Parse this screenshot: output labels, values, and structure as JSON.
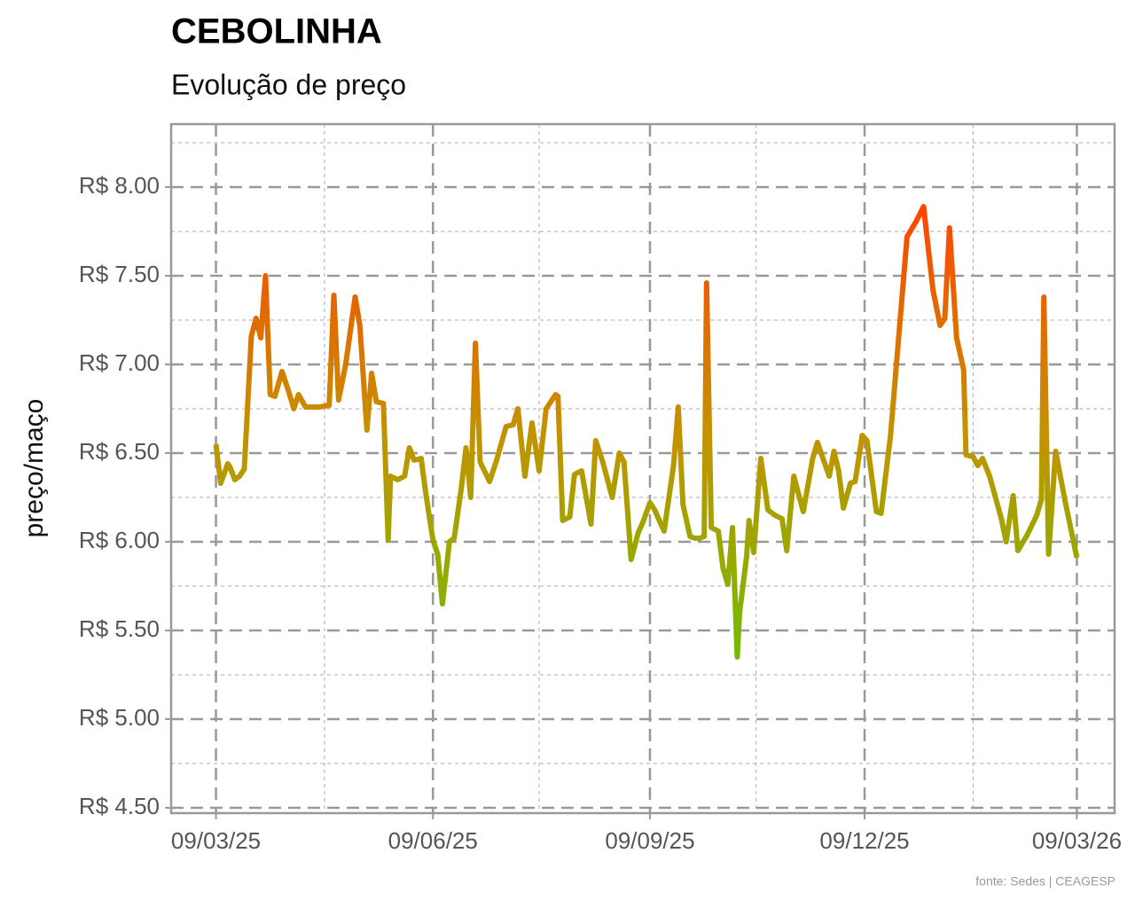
{
  "chart_data": {
    "type": "line",
    "title": "CEBOLINHA",
    "subtitle": "Evolução de preço",
    "y_label": "preço/maço",
    "source": "fonte: Sedes | CEAGESP",
    "gradient_colors": [
      "#ff4400",
      "#c49200",
      "#74bb00"
    ],
    "grid": true,
    "xlim": [
      "2025-02-18",
      "2026-03-25"
    ],
    "xticks": [
      {
        "value": "2025-03-09",
        "label": "09/03/25"
      },
      {
        "value": "2025-06-09",
        "label": "09/06/25"
      },
      {
        "value": "2025-09-09",
        "label": "09/09/25"
      },
      {
        "value": "2025-12-09",
        "label": "09/12/25"
      },
      {
        "value": "2026-03-09",
        "label": "09/03/26"
      }
    ],
    "xminor": [
      "2025-04-24",
      "2025-07-24",
      "2025-10-24",
      "2026-01-24"
    ],
    "ylim": [
      4.47,
      8.355
    ],
    "yticks": [
      {
        "value": 4.5,
        "label": "R$ 4.50"
      },
      {
        "value": 5,
        "label": "R$ 5.00"
      },
      {
        "value": 5.5,
        "label": "R$ 5.50"
      },
      {
        "value": 6,
        "label": "R$ 6.00"
      },
      {
        "value": 6.5,
        "label": "R$ 6.50"
      },
      {
        "value": 7,
        "label": "R$ 7.00"
      },
      {
        "value": 7.5,
        "label": "R$ 7.50"
      },
      {
        "value": 8,
        "label": "R$ 8.00"
      }
    ],
    "yminor": [
      4.75,
      5.25,
      5.75,
      6.25,
      6.75,
      7.25,
      7.75,
      8.25
    ],
    "x": [
      "2025-03-09",
      "2025-03-11",
      "2025-03-14",
      "2025-03-15",
      "2025-03-17",
      "2025-03-19",
      "2025-03-21",
      "2025-03-24",
      "2025-03-26",
      "2025-03-28",
      "2025-03-30",
      "2025-04-01",
      "2025-04-03",
      "2025-04-06",
      "2025-04-09",
      "2025-04-11",
      "2025-04-13",
      "2025-04-16",
      "2025-04-19",
      "2025-04-22",
      "2025-04-26",
      "2025-04-28",
      "2025-04-30",
      "2025-05-03",
      "2025-05-07",
      "2025-05-09",
      "2025-05-12",
      "2025-05-14",
      "2025-05-16",
      "2025-05-19",
      "2025-05-21",
      "2025-05-22",
      "2025-05-25",
      "2025-05-28",
      "2025-05-30",
      "2025-06-01",
      "2025-06-04",
      "2025-06-06",
      "2025-06-09",
      "2025-06-11",
      "2025-06-13",
      "2025-06-16",
      "2025-06-18",
      "2025-06-21",
      "2025-06-23",
      "2025-06-25",
      "2025-06-27",
      "2025-06-29",
      "2025-07-03",
      "2025-07-06",
      "2025-07-10",
      "2025-07-13",
      "2025-07-15",
      "2025-07-18",
      "2025-07-21",
      "2025-07-24",
      "2025-07-27",
      "2025-07-31",
      "2025-08-01",
      "2025-08-03",
      "2025-08-06",
      "2025-08-08",
      "2025-08-11",
      "2025-08-15",
      "2025-08-17",
      "2025-08-20",
      "2025-08-24",
      "2025-08-27",
      "2025-08-29",
      "2025-09-01",
      "2025-09-04",
      "2025-09-06",
      "2025-09-09",
      "2025-09-11",
      "2025-09-15",
      "2025-09-19",
      "2025-09-21",
      "2025-09-23",
      "2025-09-26",
      "2025-09-28",
      "2025-09-30",
      "2025-10-02",
      "2025-10-03",
      "2025-10-05",
      "2025-10-08",
      "2025-10-10",
      "2025-10-12",
      "2025-10-14",
      "2025-10-16",
      "2025-10-17",
      "2025-10-20",
      "2025-10-21",
      "2025-10-23",
      "2025-10-26",
      "2025-10-29",
      "2025-11-01",
      "2025-11-04",
      "2025-11-06",
      "2025-11-09",
      "2025-11-13",
      "2025-11-17",
      "2025-11-19",
      "2025-11-24",
      "2025-11-26",
      "2025-11-28",
      "2025-11-30",
      "2025-12-03",
      "2025-12-05",
      "2025-12-08",
      "2025-12-10",
      "2025-12-11",
      "2025-12-14",
      "2025-12-16",
      "2025-12-18",
      "2025-12-20",
      "2025-12-27",
      "2025-12-31",
      "2026-01-03",
      "2026-01-07",
      "2026-01-10",
      "2026-01-12",
      "2026-01-14",
      "2026-01-17",
      "2026-01-20",
      "2026-01-21",
      "2026-01-24",
      "2026-01-26",
      "2026-01-28",
      "2026-01-31",
      "2026-02-05",
      "2026-02-07",
      "2026-02-10",
      "2026-02-12",
      "2026-02-16",
      "2026-02-20",
      "2026-02-22",
      "2026-02-23",
      "2026-02-25",
      "2026-02-28",
      "2026-03-04",
      "2026-03-09"
    ],
    "values": [
      6.55,
      6.33,
      6.44,
      6.42,
      6.35,
      6.37,
      6.41,
      7.16,
      7.26,
      7.15,
      7.5,
      6.83,
      6.82,
      6.96,
      6.84,
      6.75,
      6.83,
      6.76,
      6.76,
      6.76,
      6.77,
      7.39,
      6.8,
      7.0,
      7.38,
      7.22,
      6.63,
      6.95,
      6.79,
      6.78,
      6.01,
      6.37,
      6.35,
      6.37,
      6.53,
      6.46,
      6.47,
      6.27,
      6.01,
      5.93,
      5.65,
      6.0,
      6.02,
      6.3,
      6.53,
      6.25,
      7.12,
      6.45,
      6.34,
      6.46,
      6.65,
      6.66,
      6.75,
      6.37,
      6.67,
      6.4,
      6.75,
      6.83,
      6.82,
      6.12,
      6.14,
      6.38,
      6.4,
      6.1,
      6.57,
      6.45,
      6.25,
      6.5,
      6.45,
      5.9,
      6.05,
      6.11,
      6.22,
      6.18,
      6.06,
      6.43,
      6.76,
      6.21,
      6.03,
      6.02,
      6.02,
      6.03,
      7.46,
      6.08,
      6.06,
      5.85,
      5.76,
      6.08,
      5.35,
      5.6,
      5.92,
      6.12,
      5.94,
      6.47,
      6.18,
      6.15,
      6.13,
      5.95,
      6.37,
      6.17,
      6.47,
      6.56,
      6.37,
      6.51,
      6.4,
      6.19,
      6.33,
      6.34,
      6.6,
      6.57,
      6.47,
      6.17,
      6.16,
      6.38,
      6.6,
      7.72,
      7.81,
      7.89,
      7.42,
      7.22,
      7.26,
      7.77,
      7.15,
      6.97,
      6.49,
      6.48,
      6.43,
      6.47,
      6.37,
      6.13,
      6.0,
      6.26,
      5.95,
      6.04,
      6.15,
      6.24,
      7.38,
      5.93,
      6.51,
      6.23,
      5.91
    ]
  }
}
